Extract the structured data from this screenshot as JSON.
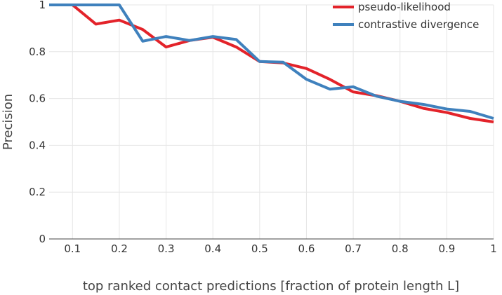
{
  "chart_data": {
    "type": "line",
    "title": "",
    "xlabel": "top ranked contact predictions [fraction of protein length L]",
    "ylabel": "Precision",
    "xlim": [
      0.05,
      1.0
    ],
    "ylim": [
      0,
      1
    ],
    "x_ticks": [
      0.1,
      0.2,
      0.3,
      0.4,
      0.5,
      0.6,
      0.7,
      0.8,
      0.9,
      1
    ],
    "x_tick_labels": [
      "0.1",
      "0.2",
      "0.3",
      "0.4",
      "0.5",
      "0.6",
      "0.7",
      "0.8",
      "0.9",
      "1"
    ],
    "y_ticks": [
      0,
      0.2,
      0.4,
      0.6,
      0.8,
      1
    ],
    "y_tick_labels": [
      "0",
      "0.2",
      "0.4",
      "0.6",
      "0.8",
      "1"
    ],
    "grid": true,
    "legend_position": "top-right",
    "x": [
      0.05,
      0.1,
      0.15,
      0.2,
      0.25,
      0.3,
      0.35,
      0.4,
      0.45,
      0.5,
      0.55,
      0.6,
      0.65,
      0.7,
      0.75,
      0.8,
      0.85,
      0.9,
      0.95,
      1.0
    ],
    "series": [
      {
        "name": "pseudo-likelihood",
        "color": "#e3232a",
        "values": [
          1.0,
          1.0,
          0.918,
          0.935,
          0.895,
          0.82,
          0.848,
          0.862,
          0.82,
          0.758,
          0.752,
          0.728,
          0.682,
          0.628,
          0.612,
          0.588,
          0.558,
          0.54,
          0.515,
          0.5
        ]
      },
      {
        "name": "contrastive divergence",
        "color": "#3f81bd",
        "values": [
          1.0,
          1.0,
          1.0,
          1.0,
          0.845,
          0.865,
          0.848,
          0.865,
          0.852,
          0.758,
          0.755,
          0.682,
          0.64,
          0.65,
          0.61,
          0.588,
          0.575,
          0.555,
          0.545,
          0.515
        ]
      }
    ]
  }
}
